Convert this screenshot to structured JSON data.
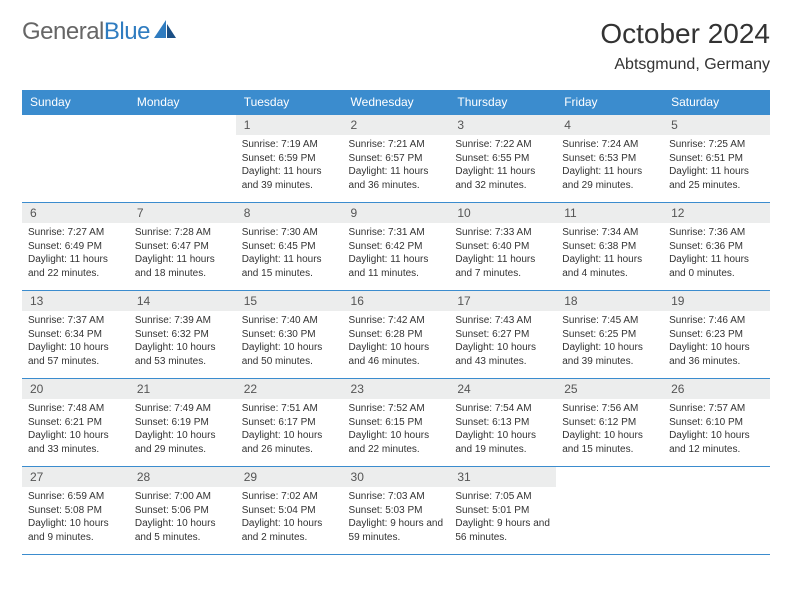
{
  "logo": {
    "part1": "General",
    "part2": "Blue"
  },
  "title": "October 2024",
  "location": "Abtsgmund, Germany",
  "colors": {
    "header_bg": "#3b8cce",
    "header_fg": "#ffffff",
    "daynum_bg": "#eceded",
    "border": "#3b8cce",
    "logo_accent": "#2f7cc0"
  },
  "weekdays": [
    "Sunday",
    "Monday",
    "Tuesday",
    "Wednesday",
    "Thursday",
    "Friday",
    "Saturday"
  ],
  "weeks": [
    [
      {
        "n": "",
        "sr": "",
        "ss": "",
        "dl": ""
      },
      {
        "n": "",
        "sr": "",
        "ss": "",
        "dl": ""
      },
      {
        "n": "1",
        "sr": "Sunrise: 7:19 AM",
        "ss": "Sunset: 6:59 PM",
        "dl": "Daylight: 11 hours and 39 minutes."
      },
      {
        "n": "2",
        "sr": "Sunrise: 7:21 AM",
        "ss": "Sunset: 6:57 PM",
        "dl": "Daylight: 11 hours and 36 minutes."
      },
      {
        "n": "3",
        "sr": "Sunrise: 7:22 AM",
        "ss": "Sunset: 6:55 PM",
        "dl": "Daylight: 11 hours and 32 minutes."
      },
      {
        "n": "4",
        "sr": "Sunrise: 7:24 AM",
        "ss": "Sunset: 6:53 PM",
        "dl": "Daylight: 11 hours and 29 minutes."
      },
      {
        "n": "5",
        "sr": "Sunrise: 7:25 AM",
        "ss": "Sunset: 6:51 PM",
        "dl": "Daylight: 11 hours and 25 minutes."
      }
    ],
    [
      {
        "n": "6",
        "sr": "Sunrise: 7:27 AM",
        "ss": "Sunset: 6:49 PM",
        "dl": "Daylight: 11 hours and 22 minutes."
      },
      {
        "n": "7",
        "sr": "Sunrise: 7:28 AM",
        "ss": "Sunset: 6:47 PM",
        "dl": "Daylight: 11 hours and 18 minutes."
      },
      {
        "n": "8",
        "sr": "Sunrise: 7:30 AM",
        "ss": "Sunset: 6:45 PM",
        "dl": "Daylight: 11 hours and 15 minutes."
      },
      {
        "n": "9",
        "sr": "Sunrise: 7:31 AM",
        "ss": "Sunset: 6:42 PM",
        "dl": "Daylight: 11 hours and 11 minutes."
      },
      {
        "n": "10",
        "sr": "Sunrise: 7:33 AM",
        "ss": "Sunset: 6:40 PM",
        "dl": "Daylight: 11 hours and 7 minutes."
      },
      {
        "n": "11",
        "sr": "Sunrise: 7:34 AM",
        "ss": "Sunset: 6:38 PM",
        "dl": "Daylight: 11 hours and 4 minutes."
      },
      {
        "n": "12",
        "sr": "Sunrise: 7:36 AM",
        "ss": "Sunset: 6:36 PM",
        "dl": "Daylight: 11 hours and 0 minutes."
      }
    ],
    [
      {
        "n": "13",
        "sr": "Sunrise: 7:37 AM",
        "ss": "Sunset: 6:34 PM",
        "dl": "Daylight: 10 hours and 57 minutes."
      },
      {
        "n": "14",
        "sr": "Sunrise: 7:39 AM",
        "ss": "Sunset: 6:32 PM",
        "dl": "Daylight: 10 hours and 53 minutes."
      },
      {
        "n": "15",
        "sr": "Sunrise: 7:40 AM",
        "ss": "Sunset: 6:30 PM",
        "dl": "Daylight: 10 hours and 50 minutes."
      },
      {
        "n": "16",
        "sr": "Sunrise: 7:42 AM",
        "ss": "Sunset: 6:28 PM",
        "dl": "Daylight: 10 hours and 46 minutes."
      },
      {
        "n": "17",
        "sr": "Sunrise: 7:43 AM",
        "ss": "Sunset: 6:27 PM",
        "dl": "Daylight: 10 hours and 43 minutes."
      },
      {
        "n": "18",
        "sr": "Sunrise: 7:45 AM",
        "ss": "Sunset: 6:25 PM",
        "dl": "Daylight: 10 hours and 39 minutes."
      },
      {
        "n": "19",
        "sr": "Sunrise: 7:46 AM",
        "ss": "Sunset: 6:23 PM",
        "dl": "Daylight: 10 hours and 36 minutes."
      }
    ],
    [
      {
        "n": "20",
        "sr": "Sunrise: 7:48 AM",
        "ss": "Sunset: 6:21 PM",
        "dl": "Daylight: 10 hours and 33 minutes."
      },
      {
        "n": "21",
        "sr": "Sunrise: 7:49 AM",
        "ss": "Sunset: 6:19 PM",
        "dl": "Daylight: 10 hours and 29 minutes."
      },
      {
        "n": "22",
        "sr": "Sunrise: 7:51 AM",
        "ss": "Sunset: 6:17 PM",
        "dl": "Daylight: 10 hours and 26 minutes."
      },
      {
        "n": "23",
        "sr": "Sunrise: 7:52 AM",
        "ss": "Sunset: 6:15 PM",
        "dl": "Daylight: 10 hours and 22 minutes."
      },
      {
        "n": "24",
        "sr": "Sunrise: 7:54 AM",
        "ss": "Sunset: 6:13 PM",
        "dl": "Daylight: 10 hours and 19 minutes."
      },
      {
        "n": "25",
        "sr": "Sunrise: 7:56 AM",
        "ss": "Sunset: 6:12 PM",
        "dl": "Daylight: 10 hours and 15 minutes."
      },
      {
        "n": "26",
        "sr": "Sunrise: 7:57 AM",
        "ss": "Sunset: 6:10 PM",
        "dl": "Daylight: 10 hours and 12 minutes."
      }
    ],
    [
      {
        "n": "27",
        "sr": "Sunrise: 6:59 AM",
        "ss": "Sunset: 5:08 PM",
        "dl": "Daylight: 10 hours and 9 minutes."
      },
      {
        "n": "28",
        "sr": "Sunrise: 7:00 AM",
        "ss": "Sunset: 5:06 PM",
        "dl": "Daylight: 10 hours and 5 minutes."
      },
      {
        "n": "29",
        "sr": "Sunrise: 7:02 AM",
        "ss": "Sunset: 5:04 PM",
        "dl": "Daylight: 10 hours and 2 minutes."
      },
      {
        "n": "30",
        "sr": "Sunrise: 7:03 AM",
        "ss": "Sunset: 5:03 PM",
        "dl": "Daylight: 9 hours and 59 minutes."
      },
      {
        "n": "31",
        "sr": "Sunrise: 7:05 AM",
        "ss": "Sunset: 5:01 PM",
        "dl": "Daylight: 9 hours and 56 minutes."
      },
      {
        "n": "",
        "sr": "",
        "ss": "",
        "dl": ""
      },
      {
        "n": "",
        "sr": "",
        "ss": "",
        "dl": ""
      }
    ]
  ]
}
